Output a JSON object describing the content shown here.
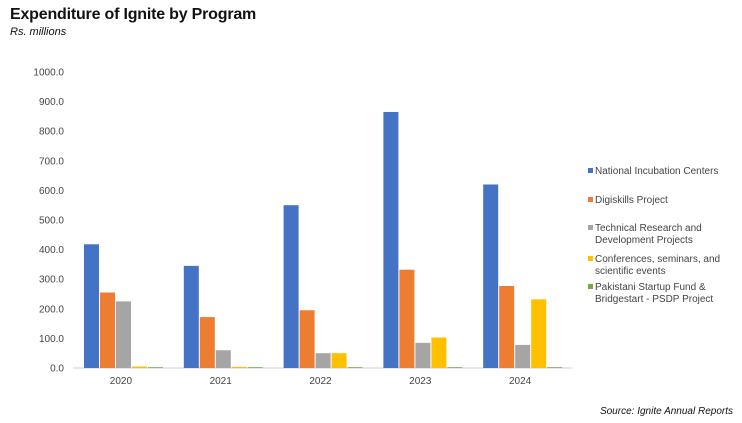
{
  "title": "Expenditure of Ignite by Program",
  "subtitle": "Rs. millions",
  "source": "Source: Ignite Annual Reports",
  "chart_data": {
    "type": "bar",
    "title": "Expenditure of Ignite by Program",
    "subtitle": "Rs. millions",
    "xlabel": "",
    "ylabel": "Rs. millions",
    "ylim": [
      0,
      1000
    ],
    "yticks": [
      0,
      100,
      200,
      300,
      400,
      500,
      600,
      700,
      800,
      900,
      1000
    ],
    "ytick_labels": [
      "0.0",
      "100.0",
      "200.0",
      "300.0",
      "400.0",
      "500.0",
      "600.0",
      "700.0",
      "800.0",
      "900.0",
      "1000.0"
    ],
    "categories": [
      "2020",
      "2021",
      "2022",
      "2023",
      "2024"
    ],
    "grid": false,
    "legend_position": "right",
    "series": [
      {
        "name": "National Incubation Centers",
        "color": "#4472C4",
        "values": [
          418,
          345,
          550,
          865,
          620
        ]
      },
      {
        "name": "Digiskills Project",
        "color": "#ED7D31",
        "values": [
          255,
          172,
          195,
          332,
          277
        ]
      },
      {
        "name": "Technical Research and Development Projects",
        "color": "#A5A5A5",
        "values": [
          225,
          60,
          50,
          85,
          78
        ]
      },
      {
        "name": "Conferences, seminars, and scientific events",
        "color": "#FFC000",
        "values": [
          5,
          3,
          50,
          103,
          232
        ]
      },
      {
        "name": "Pakistani Startup Fund & Bridgestart - PSDP Project",
        "color": "#70AD47",
        "values": [
          0,
          0,
          0,
          0,
          0
        ]
      }
    ],
    "legend_lines": [
      [
        "National Incubation Centers"
      ],
      [
        "Digiskills Project"
      ],
      [
        "Technical Research and",
        "Development Projects"
      ],
      [
        "Conferences, seminars, and",
        "scientific events"
      ],
      [
        "Pakistani Startup Fund &",
        "Bridgestart - PSDP Project"
      ]
    ]
  }
}
